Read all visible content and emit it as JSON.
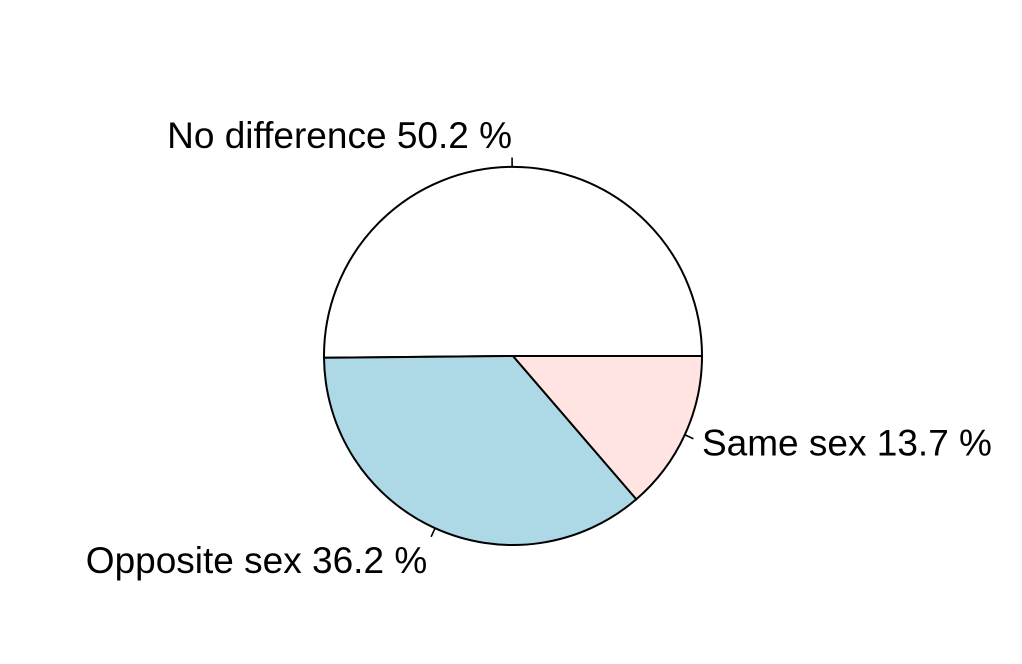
{
  "chart_data": {
    "type": "pie",
    "slices": [
      {
        "label": "No difference 50.2 %",
        "category": "No difference",
        "value": 50.2,
        "color": "#ffffff"
      },
      {
        "label": "Opposite sex 36.2 %",
        "category": "Opposite sex",
        "value": 36.2,
        "color": "#add8e6"
      },
      {
        "label": "Same sex 13.7 %",
        "category": "Same sex",
        "value": 13.7,
        "color": "#ffe4e1"
      }
    ],
    "start_angle_deg": 0,
    "direction": "counterclockwise",
    "outline_color": "#000000",
    "title": "",
    "legend": "none"
  }
}
